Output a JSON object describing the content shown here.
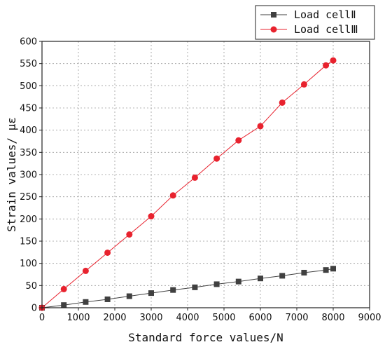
{
  "chart_data": {
    "type": "line",
    "title": "",
    "xlabel": "Standard force values/N",
    "ylabel": "Strain values/ με",
    "xlim": [
      0,
      9000
    ],
    "ylim": [
      0,
      600
    ],
    "xticks": [
      0,
      1000,
      2000,
      3000,
      4000,
      5000,
      6000,
      7000,
      8000,
      9000
    ],
    "yticks": [
      0,
      50,
      100,
      150,
      200,
      250,
      300,
      350,
      400,
      450,
      500,
      550,
      600
    ],
    "grid": true,
    "legend_position": "top-right",
    "series": [
      {
        "name": "Load cellⅡ",
        "color": "#404040",
        "marker": "square",
        "x": [
          0,
          600,
          1200,
          1800,
          2400,
          3000,
          3600,
          4200,
          4800,
          5400,
          6000,
          6600,
          7200,
          7800,
          8000
        ],
        "y": [
          0,
          6,
          13,
          19,
          26,
          33,
          40,
          46,
          53,
          59,
          66,
          72,
          79,
          85,
          88
        ]
      },
      {
        "name": "Load cellⅢ",
        "color": "#e8222e",
        "marker": "circle",
        "x": [
          0,
          600,
          1200,
          1800,
          2400,
          3000,
          3600,
          4200,
          4800,
          5400,
          6000,
          6600,
          7200,
          7800,
          8000
        ],
        "y": [
          0,
          42,
          83,
          124,
          165,
          206,
          253,
          293,
          336,
          377,
          409,
          462,
          503,
          546,
          557
        ]
      }
    ]
  }
}
